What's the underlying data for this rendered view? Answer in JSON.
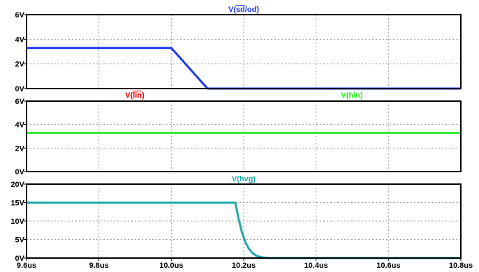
{
  "chart_data": [
    {
      "type": "line",
      "title": "V(sd/od)",
      "title_parts": [
        {
          "text": "V(",
          "overline": false
        },
        {
          "text": "sd",
          "overline": true
        },
        {
          "text": "/od)",
          "overline": false
        }
      ],
      "title_color": "#1c36f0",
      "xlim": [
        9.6,
        10.8
      ],
      "ylim": [
        0,
        6
      ],
      "yticks": [
        0,
        2,
        4,
        6
      ],
      "ytick_labels": [
        "0V",
        "2V",
        "4V",
        "6V"
      ],
      "grid": true,
      "series": [
        {
          "name": "V(sd/od)",
          "color": "#1c36f0",
          "x": [
            9.6,
            10.0,
            10.1,
            10.8
          ],
          "y": [
            3.3,
            3.3,
            0.0,
            0.0
          ]
        }
      ]
    },
    {
      "type": "line",
      "xlim": [
        9.6,
        10.8
      ],
      "ylim": [
        0,
        6
      ],
      "yticks": [
        0,
        2,
        4,
        6
      ],
      "ytick_labels": [
        "0V",
        "2V",
        "4V",
        "6V"
      ],
      "grid": true,
      "legend": [
        {
          "title": "V(lin)",
          "title_parts": [
            {
              "text": "V(",
              "overline": false
            },
            {
              "text": "lin",
              "overline": true
            },
            {
              "text": ")",
              "overline": false
            }
          ],
          "color": "#ff0000"
        },
        {
          "title": "V(hin)",
          "title_parts": [
            {
              "text": "V(hin)",
              "overline": false
            }
          ],
          "color": "#33ee33"
        }
      ],
      "series": [
        {
          "name": "V(hin)",
          "color": "#33ee33",
          "x": [
            9.6,
            10.8
          ],
          "y": [
            3.3,
            3.3
          ]
        }
      ]
    },
    {
      "type": "line",
      "title": "V(hvg)",
      "title_parts": [
        {
          "text": "V(hvg)",
          "overline": false
        }
      ],
      "title_color": "#20a8a8",
      "xlim": [
        9.6,
        10.8
      ],
      "ylim": [
        0,
        20
      ],
      "yticks": [
        0,
        5,
        10,
        15,
        20
      ],
      "ytick_labels": [
        "0V",
        "5V",
        "10V",
        "15V",
        "20V"
      ],
      "xticks": [
        9.6,
        9.8,
        10.0,
        10.2,
        10.4,
        10.6,
        10.8
      ],
      "xtick_labels": [
        "9.6us",
        "9.8us",
        "10.0us",
        "10.2us",
        "10.4us",
        "10.6us",
        "10.8us"
      ],
      "grid": true,
      "series": [
        {
          "name": "V(hvg)",
          "color": "#20a8a8",
          "x": [
            9.6,
            10.177,
            10.185,
            10.195,
            10.205,
            10.215,
            10.225,
            10.235,
            10.25,
            10.27,
            10.8
          ],
          "y": [
            15,
            15,
            11,
            7,
            4.2,
            2.4,
            1.3,
            0.6,
            0.2,
            0.0,
            0.0
          ]
        }
      ]
    }
  ]
}
